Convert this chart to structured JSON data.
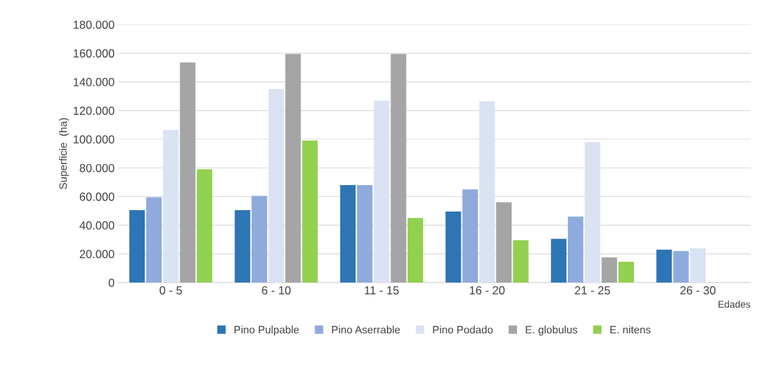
{
  "chart_data": {
    "type": "bar",
    "ylabel": "Superficie  (ha)",
    "xlabel": "Edades",
    "categories": [
      "0 - 5",
      "6 - 10",
      "11 - 15",
      "16 - 20",
      "21 - 25",
      "26 - 30"
    ],
    "series": [
      {
        "name": "Pino Pulpable",
        "color": "#2e75b6",
        "values": [
          50500,
          50500,
          68000,
          49500,
          30500,
          23000
        ]
      },
      {
        "name": "Pino Aserrable",
        "color": "#8faadc",
        "values": [
          59500,
          60500,
          68000,
          65000,
          46000,
          22000
        ]
      },
      {
        "name": "Pino Podado",
        "color": "#dae3f3",
        "values": [
          106500,
          135000,
          127000,
          126500,
          98000,
          24000
        ]
      },
      {
        "name": "E. globulus",
        "color": "#a5a5a5",
        "values": [
          153500,
          159500,
          159500,
          56000,
          17500,
          null
        ]
      },
      {
        "name": "E. nitens",
        "color": "#92d050",
        "values": [
          79000,
          99000,
          45000,
          29500,
          14500,
          null
        ]
      }
    ],
    "ylim": [
      0,
      180000
    ],
    "yticks": [
      {
        "value": 0,
        "label": "0"
      },
      {
        "value": 20000,
        "label": "20.000"
      },
      {
        "value": 40000,
        "label": "40.000"
      },
      {
        "value": 60000,
        "label": "60.000"
      },
      {
        "value": 80000,
        "label": "80.000"
      },
      {
        "value": 100000,
        "label": "100.000"
      },
      {
        "value": 120000,
        "label": "120.000"
      },
      {
        "value": 140000,
        "label": "140.000"
      },
      {
        "value": 160000,
        "label": "160.000"
      },
      {
        "value": 180000,
        "label": "180.000"
      }
    ],
    "grid": "y",
    "legend": "bottom"
  }
}
